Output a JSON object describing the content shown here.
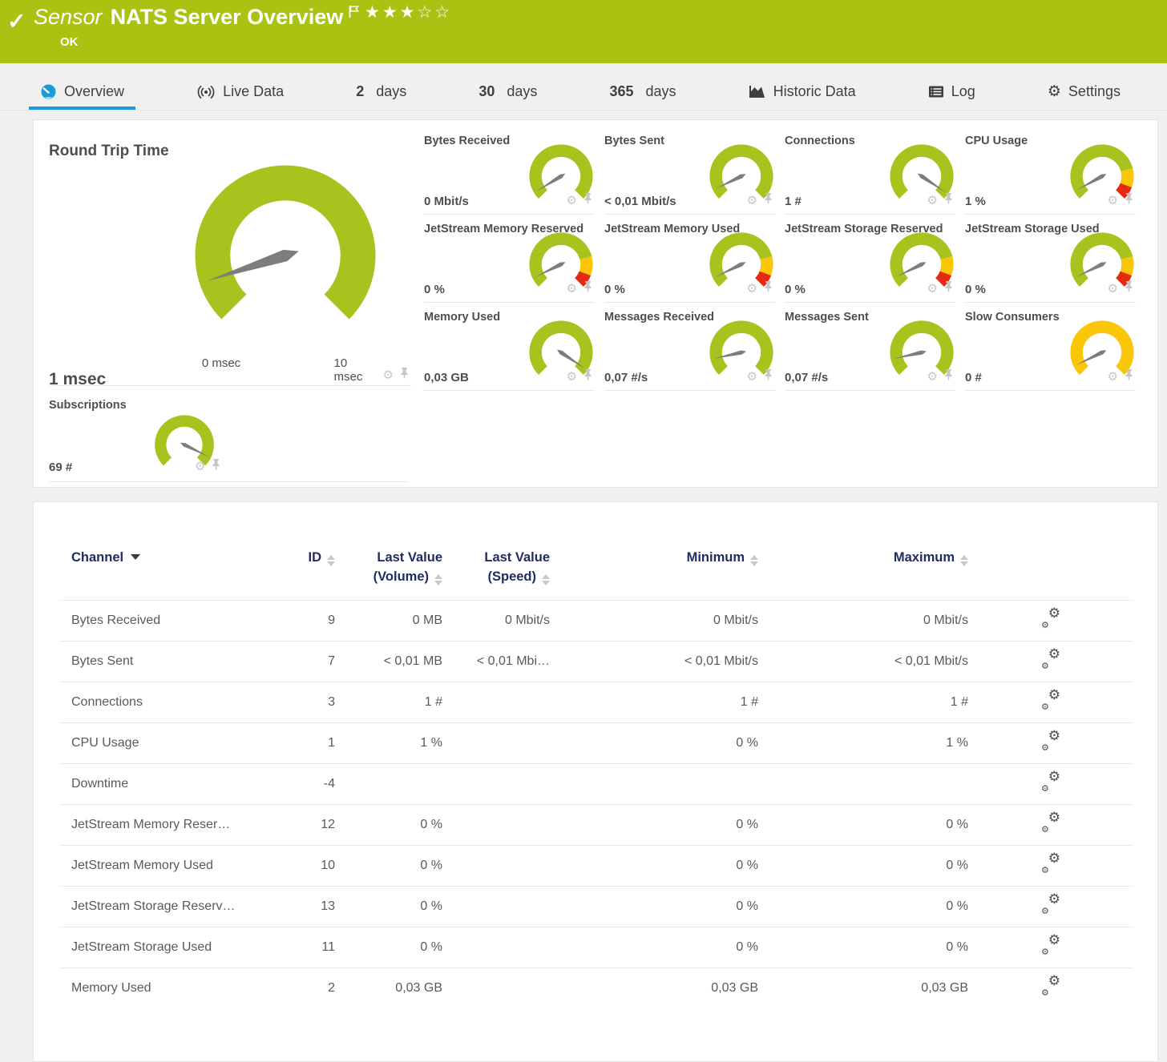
{
  "palette": {
    "green": "#a9c21d",
    "yellow": "#fcc608",
    "red": "#e42a10",
    "blue": "#1e9bd7",
    "header_green": "#aac312",
    "navy": "#212c5f",
    "needle": "#7d7d7d"
  },
  "header": {
    "sensor_label": "Sensor",
    "title": "NATS Server Overview",
    "status": "OK",
    "stars_filled": "★★★",
    "stars_empty": "☆☆"
  },
  "tabs": [
    {
      "label": "Overview"
    },
    {
      "label": "Live Data"
    },
    {
      "prefix": "2",
      "label": "days"
    },
    {
      "prefix": "30",
      "label": "days"
    },
    {
      "prefix": "365",
      "label": "days"
    },
    {
      "label": "Historic Data"
    },
    {
      "label": "Log"
    },
    {
      "label": "Settings"
    }
  ],
  "gauge_cards": [
    "bytes_received",
    "bytes_sent",
    "connections",
    "cpu_usage",
    "js_mem_reserved",
    "js_mem_used",
    "js_store_reserved",
    "js_store_used",
    "memory_used",
    "messages_received",
    "messages_sent",
    "slow_consumers",
    "subscriptions"
  ],
  "gauges": {
    "round_trip_time": {
      "title": "Round Trip Time",
      "value": "1 msec",
      "min_label": "0 msec",
      "max_label": "10 msec",
      "needle": 0.1,
      "segments": [
        [
          "green",
          1
        ]
      ]
    },
    "bytes_received": {
      "title": "Bytes Received",
      "value": "0 Mbit/s",
      "needle": 0.05,
      "segments": [
        [
          "green",
          1
        ]
      ]
    },
    "bytes_sent": {
      "title": "Bytes Sent",
      "value": "< 0,01 Mbit/s",
      "needle": 0.07,
      "segments": [
        [
          "green",
          1
        ]
      ]
    },
    "connections": {
      "title": "Connections",
      "value": "1 #",
      "needle": 0.96,
      "segments": [
        [
          "green",
          1
        ]
      ]
    },
    "cpu_usage": {
      "title": "CPU Usage",
      "value": "1 %",
      "needle": 0.06,
      "segments": [
        [
          "green",
          0.78
        ],
        [
          "yellow",
          0.13
        ],
        [
          "red",
          0.09
        ]
      ]
    },
    "js_mem_reserved": {
      "title": "JetStream Memory Reserved",
      "value": "0 %",
      "needle": 0.07,
      "segments": [
        [
          "green",
          0.78
        ],
        [
          "yellow",
          0.13
        ],
        [
          "red",
          0.09
        ]
      ]
    },
    "js_mem_used": {
      "title": "JetStream Memory Used",
      "value": "0 %",
      "needle": 0.07,
      "segments": [
        [
          "green",
          0.78
        ],
        [
          "yellow",
          0.13
        ],
        [
          "red",
          0.09
        ]
      ]
    },
    "js_store_reserved": {
      "title": "JetStream Storage Reserved",
      "value": "0 %",
      "needle": 0.07,
      "segments": [
        [
          "green",
          0.78
        ],
        [
          "yellow",
          0.13
        ],
        [
          "red",
          0.09
        ]
      ]
    },
    "js_store_used": {
      "title": "JetStream Storage Used",
      "value": "0 %",
      "needle": 0.07,
      "segments": [
        [
          "green",
          0.78
        ],
        [
          "yellow",
          0.13
        ],
        [
          "red",
          0.09
        ]
      ]
    },
    "memory_used": {
      "title": "Memory Used",
      "value": "0,03 GB",
      "needle": 0.96,
      "segments": [
        [
          "green",
          1
        ]
      ]
    },
    "messages_received": {
      "title": "Messages Received",
      "value": "0,07 #/s",
      "needle": 0.12,
      "segments": [
        [
          "green",
          1
        ]
      ]
    },
    "messages_sent": {
      "title": "Messages Sent",
      "value": "0,07 #/s",
      "needle": 0.12,
      "segments": [
        [
          "green",
          1
        ]
      ]
    },
    "slow_consumers": {
      "title": "Slow Consumers",
      "value": "0 #",
      "needle": 0.07,
      "segments": [
        [
          "yellow",
          1
        ]
      ]
    },
    "subscriptions": {
      "title": "Subscriptions",
      "value": "69 #",
      "needle": 0.93,
      "segments": [
        [
          "green",
          1
        ]
      ]
    }
  },
  "table": {
    "headers": {
      "channel": "Channel",
      "id": "ID",
      "volume_l1": "Last Value",
      "volume_l2": "(Volume)",
      "speed_l1": "Last Value",
      "speed_l2": "(Speed)",
      "minimum": "Minimum",
      "maximum": "Maximum"
    },
    "rows": [
      {
        "channel": "Bytes Received",
        "id": "9",
        "volume": "0 MB",
        "speed": "0 Mbit/s",
        "min": "0 Mbit/s",
        "max": "0 Mbit/s"
      },
      {
        "channel": "Bytes Sent",
        "id": "7",
        "volume": "< 0,01 MB",
        "speed": "< 0,01 Mbi…",
        "min": "< 0,01 Mbit/s",
        "max": "< 0,01 Mbit/s"
      },
      {
        "channel": "Connections",
        "id": "3",
        "volume": "1 #",
        "speed": "",
        "min": "1 #",
        "max": "1 #"
      },
      {
        "channel": "CPU Usage",
        "id": "1",
        "volume": "1 %",
        "speed": "",
        "min": "0 %",
        "max": "1 %"
      },
      {
        "channel": "Downtime",
        "id": "-4",
        "volume": "",
        "speed": "",
        "min": "",
        "max": ""
      },
      {
        "channel": "JetStream Memory Reser…",
        "id": "12",
        "volume": "0 %",
        "speed": "",
        "min": "0 %",
        "max": "0 %"
      },
      {
        "channel": "JetStream Memory Used",
        "id": "10",
        "volume": "0 %",
        "speed": "",
        "min": "0 %",
        "max": "0 %"
      },
      {
        "channel": "JetStream Storage Reserv…",
        "id": "13",
        "volume": "0 %",
        "speed": "",
        "min": "0 %",
        "max": "0 %"
      },
      {
        "channel": "JetStream Storage Used",
        "id": "11",
        "volume": "0 %",
        "speed": "",
        "min": "0 %",
        "max": "0 %"
      },
      {
        "channel": "Memory Used",
        "id": "2",
        "volume": "0,03 GB",
        "speed": "",
        "min": "0,03 GB",
        "max": "0,03 GB"
      }
    ]
  }
}
